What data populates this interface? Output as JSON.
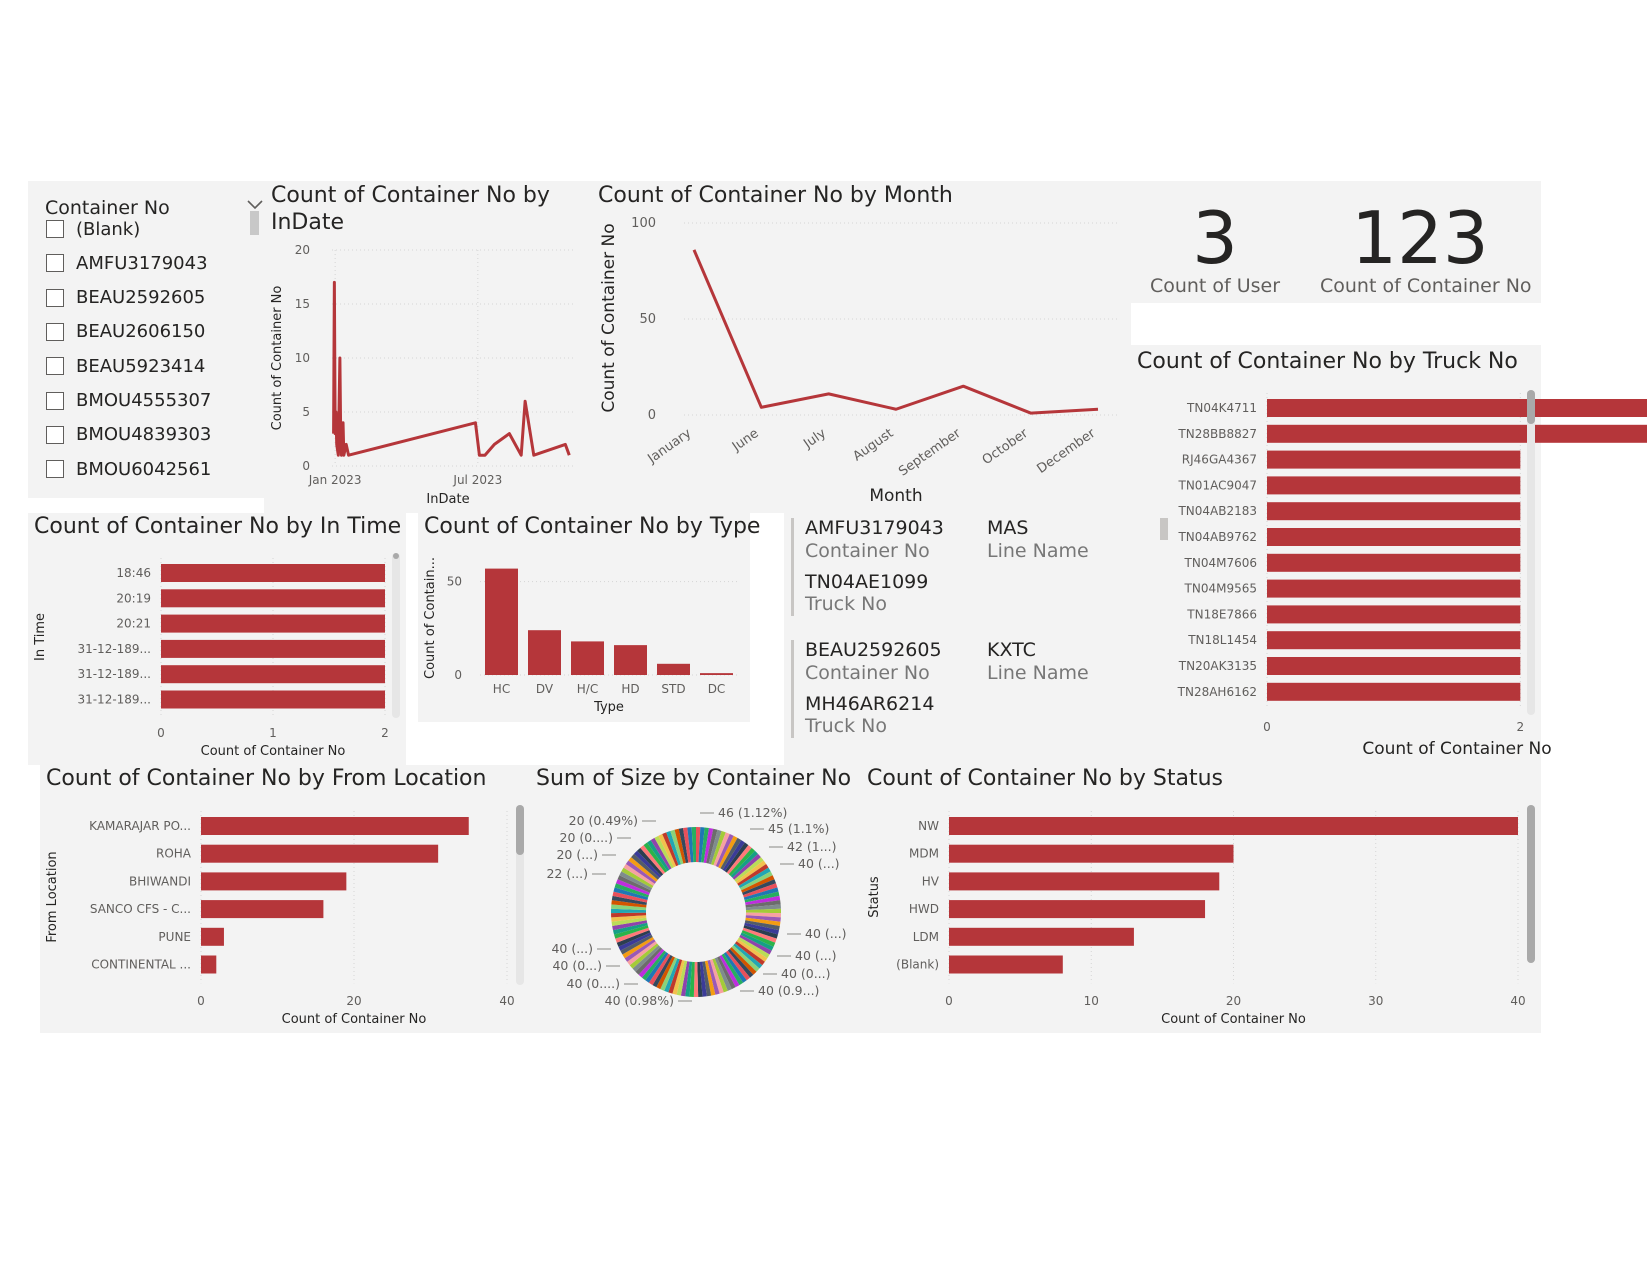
{
  "colors": {
    "bar": "#b5363a",
    "line": "#b5363a",
    "panel": "#f3f3f3",
    "text": "#252423",
    "muted": "#605e5c"
  },
  "slicer": {
    "title": "Container No",
    "icon": "chevron-down-icon",
    "items": [
      "(Blank)",
      "AMFU3179043",
      "BEAU2592605",
      "BEAU2606150",
      "BEAU5923414",
      "BMOU4555307",
      "BMOU4839303",
      "BMOU6042561"
    ]
  },
  "kpis": {
    "users": {
      "value": "3",
      "label": "Count of User"
    },
    "containers": {
      "value": "123",
      "label": "Count of Container No"
    }
  },
  "cards": [
    {
      "container": "AMFU3179043",
      "container_label": "Container No",
      "line": "MAS",
      "line_label": "Line Name",
      "truck": "TN04AE1099",
      "truck_label": "Truck No"
    },
    {
      "container": "BEAU2592605",
      "container_label": "Container No",
      "line": "KXTC",
      "line_label": "Line Name",
      "truck": "MH46AR6214",
      "truck_label": "Truck No"
    }
  ],
  "chart_data": [
    {
      "id": "indate",
      "type": "line",
      "title": "Count of Container No by InDate",
      "title_lines": [
        "Count of Container No by",
        "InDate"
      ],
      "xlabel": "InDate",
      "ylabel": "Count of Container No",
      "ylim": [
        0,
        20
      ],
      "yticks": [
        0,
        5,
        10,
        15,
        20
      ],
      "xticks": [
        "Jan 2023",
        "Jul 2023"
      ],
      "xtick_dates": [
        "2023-01-01",
        "2023-07-01"
      ],
      "xlim": [
        "2022-12-28",
        "2023-10-31"
      ],
      "points": [
        [
          "2022-12-30",
          3
        ],
        [
          "2022-12-31",
          17
        ],
        [
          "2023-01-01",
          3
        ],
        [
          "2023-01-02",
          5
        ],
        [
          "2023-01-03",
          2
        ],
        [
          "2023-01-05",
          1
        ],
        [
          "2023-01-07",
          10
        ],
        [
          "2023-01-08",
          3
        ],
        [
          "2023-01-09",
          1
        ],
        [
          "2023-01-11",
          4
        ],
        [
          "2023-01-12",
          1
        ],
        [
          "2023-01-15",
          2
        ],
        [
          "2023-01-18",
          1
        ],
        [
          "2023-06-28",
          4
        ],
        [
          "2023-07-03",
          1
        ],
        [
          "2023-07-10",
          1
        ],
        [
          "2023-07-22",
          2
        ],
        [
          "2023-08-10",
          3
        ],
        [
          "2023-08-25",
          1
        ],
        [
          "2023-08-30",
          6
        ],
        [
          "2023-09-10",
          1
        ],
        [
          "2023-10-20",
          2
        ],
        [
          "2023-10-25",
          1
        ]
      ]
    },
    {
      "id": "month",
      "type": "line",
      "title": "Count of Container No by Month",
      "xlabel": "Month",
      "ylabel": "Count of Container No",
      "ylim": [
        0,
        100
      ],
      "yticks": [
        0,
        50,
        100
      ],
      "categories": [
        "January",
        "June",
        "July",
        "August",
        "September",
        "October",
        "December"
      ],
      "values": [
        86,
        4,
        11,
        3,
        15,
        1,
        3
      ]
    },
    {
      "id": "intime",
      "type": "bar",
      "orientation": "horizontal",
      "title": "Count of Container No by In Time",
      "xlabel": "Count of Container No",
      "ylabel": "In Time",
      "xlim": [
        0,
        2
      ],
      "xticks": [
        0,
        1,
        2
      ],
      "categories": [
        "18:46",
        "20:19",
        "20:21",
        "31-12-189...",
        "31-12-189...",
        "31-12-189..."
      ],
      "values": [
        2,
        2,
        2,
        2,
        2,
        2
      ]
    },
    {
      "id": "type",
      "type": "bar",
      "orientation": "vertical",
      "title": "Count of Container No by Type",
      "xlabel": "Type",
      "ylabel": "Count of Contain...",
      "ylim": [
        0,
        60
      ],
      "yticks": [
        0,
        50
      ],
      "categories": [
        "HC",
        "DV",
        "H/C",
        "HD",
        "STD",
        "DC"
      ],
      "values": [
        57,
        24,
        18,
        16,
        6,
        1
      ]
    },
    {
      "id": "truck",
      "type": "bar",
      "orientation": "horizontal",
      "title": "Count of Container No by Truck No",
      "xlabel": "Count of Container No",
      "xlim": [
        0,
        3
      ],
      "xticks": [
        0,
        2
      ],
      "categories": [
        "TN04K4711",
        "TN28BB8827",
        "RJ46GA4367",
        "TN01AC9047",
        "TN04AB2183",
        "TN04AB9762",
        "TN04M7606",
        "TN04M9565",
        "TN18E7866",
        "TN18L1454",
        "TN20AK3135",
        "TN28AH6162"
      ],
      "values": [
        3,
        3,
        2,
        2,
        2,
        2,
        2,
        2,
        2,
        2,
        2,
        2
      ]
    },
    {
      "id": "location",
      "type": "bar",
      "orientation": "horizontal",
      "title": "Count of Container No by From Location",
      "xlabel": "Count of Container No",
      "ylabel": "From Location",
      "xlim": [
        0,
        40
      ],
      "xticks": [
        0,
        20,
        40
      ],
      "categories": [
        "KAMARAJAR PO...",
        "ROHA",
        "BHIWANDI",
        "SANCO CFS - C...",
        "PUNE",
        "CONTINENTAL ..."
      ],
      "values": [
        35,
        31,
        19,
        16,
        3,
        2
      ]
    },
    {
      "id": "size",
      "type": "pie",
      "donut": true,
      "title": "Sum of Size by Container No",
      "slice_count": 123,
      "labels_right": [
        "46 (1.12%)",
        "45 (1.1%)",
        "42 (1...)",
        "40 (...)",
        "40 (...)",
        "40 (...)",
        "40 (0...)",
        "40 (0.9...)"
      ],
      "labels_left": [
        "20 (0.49%)",
        "20 (0....)",
        "20 (...)",
        "22 (...)",
        "40 (...)",
        "40 (0...)",
        "40 (0....)",
        "40 (0.98%)"
      ]
    },
    {
      "id": "status",
      "type": "bar",
      "orientation": "horizontal",
      "title": "Count of Container No by Status",
      "xlabel": "Count of Container No",
      "ylabel": "Status",
      "xlim": [
        0,
        40
      ],
      "xticks": [
        0,
        10,
        20,
        30,
        40
      ],
      "categories": [
        "NW",
        "MDM",
        "HV",
        "HWD",
        "LDM",
        "(Blank)"
      ],
      "values": [
        40,
        20,
        19,
        18,
        13,
        8
      ]
    }
  ]
}
